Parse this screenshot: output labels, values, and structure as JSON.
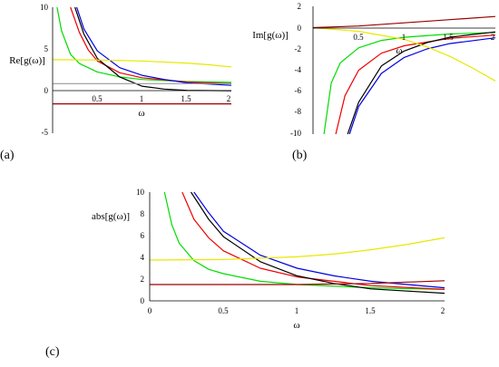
{
  "panel_labels": [
    "(a)",
    "(b)",
    "(c)"
  ],
  "chart_data": [
    {
      "type": "line",
      "panel": "(a)",
      "ylabel": "Re[g(ω)]",
      "xlabel": "ω",
      "xlim": [
        0,
        2
      ],
      "ylim": [
        -5,
        10
      ],
      "xticks": [
        "0.5",
        "1",
        "1.5",
        "2"
      ],
      "yticks": [
        "10",
        "5",
        "0",
        "-5"
      ],
      "series": [
        {
          "color": "#00dd00",
          "x": [
            0.05,
            0.1,
            0.2,
            0.3,
            0.5,
            0.75,
            1,
            1.5,
            2
          ],
          "y": [
            10,
            7.2,
            4.4,
            3.3,
            2.3,
            1.7,
            1.4,
            1.15,
            1.05
          ]
        },
        {
          "color": "#ee0000",
          "x": [
            0.2,
            0.3,
            0.4,
            0.5,
            0.75,
            1,
            1.5,
            2
          ],
          "y": [
            10,
            7.0,
            4.9,
            3.6,
            2.2,
            1.6,
            1.1,
            0.9
          ]
        },
        {
          "color": "#0000dd",
          "x": [
            0.27,
            0.35,
            0.5,
            0.75,
            1,
            1.25,
            1.5,
            2
          ],
          "y": [
            10,
            7.4,
            4.8,
            2.8,
            1.9,
            1.4,
            1.0,
            0.7
          ]
        },
        {
          "color": "#000000",
          "x": [
            0.25,
            0.35,
            0.5,
            0.75,
            1,
            1.25,
            1.5,
            2
          ],
          "y": [
            10,
            6.8,
            3.9,
            1.7,
            0.6,
            0.25,
            0.1,
            0.05
          ]
        },
        {
          "color": "#e8e800",
          "x": [
            0,
            0.5,
            1,
            1.5,
            1.75,
            2
          ],
          "y": [
            3.75,
            3.72,
            3.6,
            3.35,
            3.15,
            2.9
          ]
        },
        {
          "color": "#990000",
          "x": [
            0,
            2
          ],
          "y": [
            -1.5,
            -1.5
          ]
        },
        {
          "color": "#999999",
          "x": [
            0,
            2
          ],
          "y": [
            0.9,
            0.9
          ]
        }
      ]
    },
    {
      "type": "line",
      "panel": "(b)",
      "ylabel": "Im[g(ω)]",
      "xlabel": "ω",
      "xlim": [
        0,
        2
      ],
      "ylim": [
        -10,
        2
      ],
      "xticks": [
        "0.5",
        "1",
        "1.5",
        "2"
      ],
      "yticks": [
        "2",
        "0",
        "-2",
        "-4",
        "-6",
        "-8",
        "-10"
      ],
      "series": [
        {
          "color": "#00dd00",
          "x": [
            0.12,
            0.2,
            0.3,
            0.5,
            0.75,
            1,
            1.5,
            2
          ],
          "y": [
            -10,
            -5.2,
            -3.3,
            -1.9,
            -1.2,
            -0.9,
            -0.6,
            -0.45
          ]
        },
        {
          "color": "#ee0000",
          "x": [
            0.25,
            0.35,
            0.5,
            0.75,
            1,
            1.5,
            2
          ],
          "y": [
            -10,
            -6.4,
            -4.0,
            -2.4,
            -1.7,
            -1.0,
            -0.7
          ]
        },
        {
          "color": "#0000dd",
          "x": [
            0.4,
            0.5,
            0.75,
            1,
            1.25,
            1.5,
            2
          ],
          "y": [
            -10,
            -7.4,
            -4.3,
            -2.8,
            -2.0,
            -1.5,
            -0.95
          ]
        },
        {
          "color": "#000000",
          "x": [
            0.38,
            0.5,
            0.75,
            1,
            1.25,
            1.5,
            2
          ],
          "y": [
            -10,
            -7.0,
            -3.6,
            -2.2,
            -1.4,
            -0.9,
            -0.4
          ]
        },
        {
          "color": "#e8e800",
          "x": [
            0,
            0.5,
            1,
            1.25,
            1.5,
            1.75,
            2
          ],
          "y": [
            0,
            -0.35,
            -1.1,
            -1.8,
            -2.7,
            -3.8,
            -5.0
          ]
        },
        {
          "color": "#990000",
          "x": [
            0,
            0.5,
            1,
            1.5,
            2
          ],
          "y": [
            0,
            0.15,
            0.45,
            0.75,
            1.05
          ]
        }
      ]
    },
    {
      "type": "line",
      "panel": "(c)",
      "ylabel": "abs[g(ω)]",
      "xlabel": "ω",
      "xlim": [
        0,
        2
      ],
      "ylim": [
        0,
        10
      ],
      "xticks": [
        "0",
        "0.5",
        "1",
        "1.5",
        "2"
      ],
      "yticks": [
        "10",
        "8",
        "6",
        "4",
        "2",
        "0"
      ],
      "series": [
        {
          "color": "#00dd00",
          "x": [
            0.1,
            0.15,
            0.2,
            0.3,
            0.4,
            0.5,
            0.75,
            1,
            1.5,
            2
          ],
          "y": [
            10,
            7.0,
            5.3,
            3.7,
            2.9,
            2.5,
            1.8,
            1.5,
            1.2,
            1.05
          ]
        },
        {
          "color": "#ee0000",
          "x": [
            0.22,
            0.3,
            0.4,
            0.5,
            0.75,
            1,
            1.5,
            2
          ],
          "y": [
            10,
            7.5,
            5.8,
            4.6,
            3.0,
            2.2,
            1.4,
            1.05
          ]
        },
        {
          "color": "#0000dd",
          "x": [
            0.3,
            0.4,
            0.5,
            0.75,
            1,
            1.25,
            1.5,
            2
          ],
          "y": [
            10,
            8.1,
            6.4,
            4.2,
            3.0,
            2.3,
            1.8,
            1.2
          ]
        },
        {
          "color": "#000000",
          "x": [
            0.28,
            0.4,
            0.5,
            0.75,
            1,
            1.25,
            1.5,
            2
          ],
          "y": [
            10,
            7.5,
            5.9,
            3.6,
            2.3,
            1.6,
            1.1,
            0.7
          ]
        },
        {
          "color": "#e8e800",
          "x": [
            0,
            0.5,
            1,
            1.25,
            1.5,
            1.75,
            2
          ],
          "y": [
            3.75,
            3.8,
            4.05,
            4.3,
            4.7,
            5.2,
            5.8
          ]
        },
        {
          "color": "#990000",
          "x": [
            0,
            1,
            1.25,
            1.5,
            2
          ],
          "y": [
            1.5,
            1.5,
            1.55,
            1.6,
            1.85
          ]
        }
      ]
    }
  ]
}
